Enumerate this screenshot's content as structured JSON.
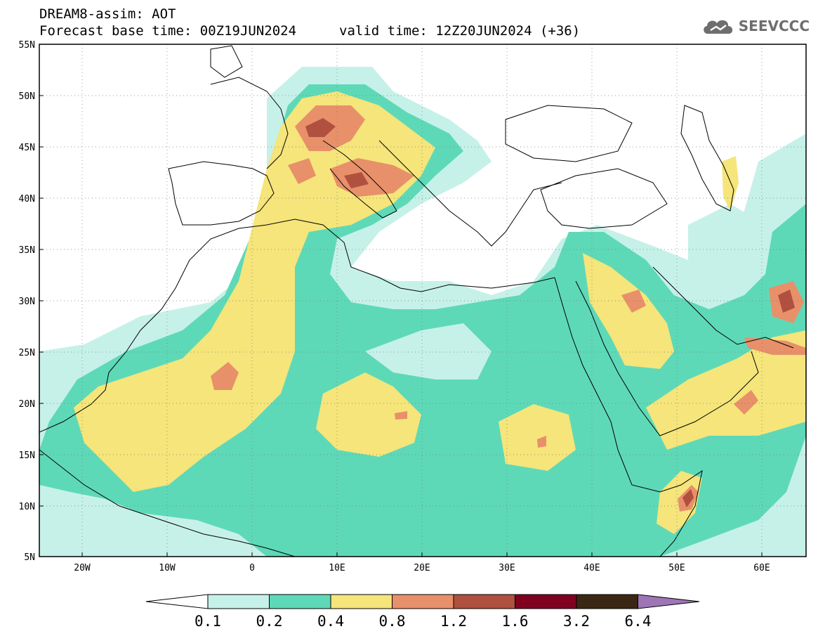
{
  "header": {
    "title_line1": "DREAM8-assim: AOT",
    "title_line2": "Forecast base time: 00Z19JUN2024",
    "valid_time": "valid time: 12Z20JUN2024 (+36)",
    "logo_text": "SEEVCCC",
    "logo_icon": "cloud-logo-icon"
  },
  "map": {
    "lon_range": [
      -25,
      65
    ],
    "lat_range": [
      5,
      55
    ],
    "lat_ticks": [
      "55N",
      "50N",
      "45N",
      "40N",
      "35N",
      "30N",
      "25N",
      "20N",
      "15N",
      "10N",
      "5N"
    ],
    "lon_ticks": [
      "20W",
      "10W",
      "0",
      "10E",
      "20E",
      "30E",
      "40E",
      "50E",
      "60E"
    ],
    "grid": true
  },
  "colorbar": {
    "labels": [
      "0.1",
      "0.2",
      "0.4",
      "0.8",
      "1.2",
      "1.6",
      "3.2",
      "6.4"
    ],
    "colors": [
      "#c6f1e8",
      "#5ed9b8",
      "#f5e57a",
      "#e8906a",
      "#b0503e",
      "#800020",
      "#3a2814",
      "#9e75b5"
    ],
    "low_color": "#ffffff"
  },
  "aot_levels": {
    "l1": "#c6f1e8",
    "l2": "#5ed9b8",
    "l3": "#f5e57a",
    "l4": "#e8906a",
    "l5": "#b0503e",
    "l6": "#800020"
  }
}
